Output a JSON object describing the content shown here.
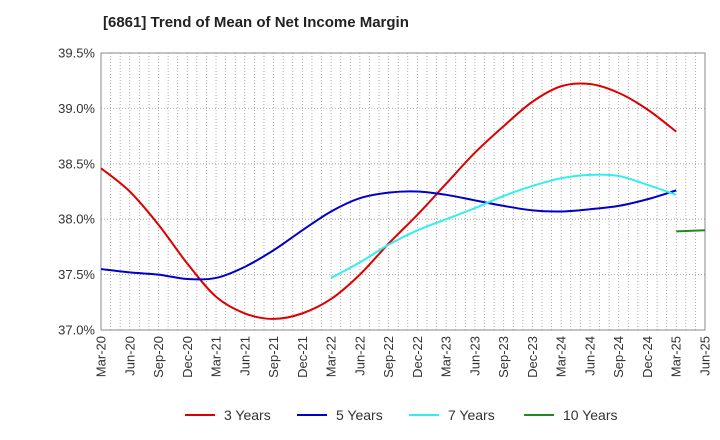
{
  "chart_data": {
    "type": "line",
    "title": "[6861]  Trend of Mean of Net Income Margin",
    "xlabel": "",
    "ylabel": "",
    "ylim": [
      37.0,
      39.5
    ],
    "yticks": [
      "37.0%",
      "37.5%",
      "38.0%",
      "38.5%",
      "39.0%",
      "39.5%"
    ],
    "ytick_values": [
      37.0,
      37.5,
      38.0,
      38.5,
      39.0,
      39.5
    ],
    "x_categories": [
      "Mar-20",
      "Jun-20",
      "Sep-20",
      "Dec-20",
      "Mar-21",
      "Jun-21",
      "Sep-21",
      "Dec-21",
      "Mar-22",
      "Jun-22",
      "Sep-22",
      "Dec-22",
      "Mar-23",
      "Jun-23",
      "Sep-23",
      "Dec-23",
      "Mar-24",
      "Jun-24",
      "Sep-24",
      "Dec-24",
      "Mar-25",
      "Jun-25"
    ],
    "grid": true,
    "legend_position": "bottom",
    "series": [
      {
        "name": "3 Years",
        "color": "#dd0000",
        "start_index": 0,
        "values": [
          38.46,
          38.25,
          37.95,
          37.6,
          37.3,
          37.15,
          37.1,
          37.15,
          37.28,
          37.5,
          37.78,
          38.04,
          38.32,
          38.6,
          38.84,
          39.06,
          39.2,
          39.22,
          39.14,
          38.99,
          38.79
        ]
      },
      {
        "name": "5 Years",
        "color": "#0000cc",
        "start_index": 0,
        "values": [
          37.55,
          37.52,
          37.5,
          37.46,
          37.47,
          37.57,
          37.72,
          37.9,
          38.07,
          38.19,
          38.24,
          38.25,
          38.22,
          38.17,
          38.12,
          38.08,
          38.07,
          38.09,
          38.12,
          38.18,
          38.26
        ]
      },
      {
        "name": "7 Years",
        "color": "#33eeee",
        "start_index": 8,
        "values": [
          37.47,
          37.61,
          37.77,
          37.9,
          38.0,
          38.1,
          38.21,
          38.3,
          38.37,
          38.4,
          38.39,
          38.31,
          38.22
        ]
      },
      {
        "name": "10 Years",
        "color": "#228822",
        "start_index": 20,
        "values": [
          37.89,
          37.9
        ]
      }
    ]
  }
}
